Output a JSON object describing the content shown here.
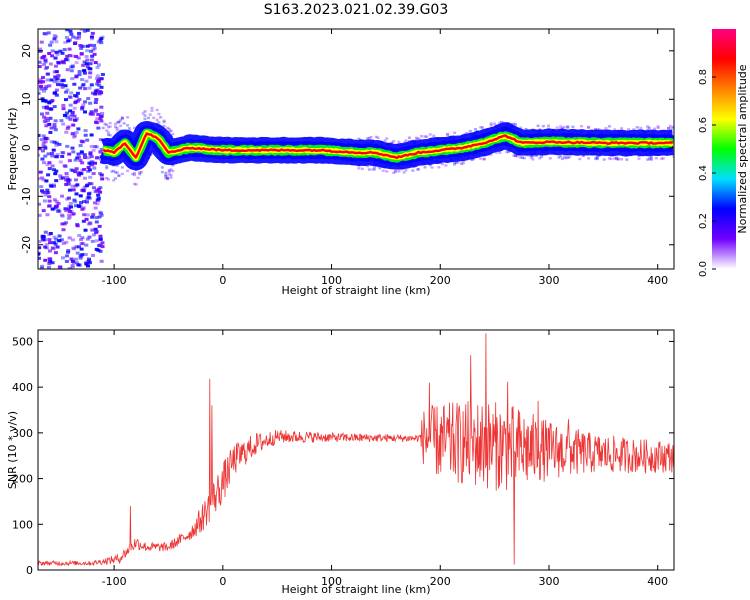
{
  "title": "S163.2023.021.02.39.G03",
  "chart_data": [
    {
      "type": "heatmap",
      "xlabel": "Height of straight line (km)",
      "ylabel": "Frequency (Hz)",
      "xlim": [
        -170,
        415
      ],
      "ylim": [
        -25,
        24.5
      ],
      "xticks": [
        -100,
        0,
        100,
        200,
        300,
        400
      ],
      "yticks": [
        -20,
        -10,
        0,
        10,
        20
      ],
      "ridge": [
        [
          -170,
          0
        ],
        [
          -120,
          0
        ],
        [
          -100,
          -1
        ],
        [
          -90,
          1
        ],
        [
          -80,
          -2
        ],
        [
          -70,
          3
        ],
        [
          -60,
          2
        ],
        [
          -50,
          -1
        ],
        [
          -40,
          -0.5
        ],
        [
          -30,
          0
        ],
        [
          0,
          -0.5
        ],
        [
          50,
          -0.5
        ],
        [
          90,
          -0.5
        ],
        [
          125,
          -1
        ],
        [
          140,
          -1
        ],
        [
          160,
          -2
        ],
        [
          180,
          -1
        ],
        [
          200,
          -0.5
        ],
        [
          220,
          0
        ],
        [
          240,
          1
        ],
        [
          260,
          2.5
        ],
        [
          275,
          1
        ],
        [
          300,
          1.2
        ],
        [
          350,
          1
        ],
        [
          415,
          1
        ]
      ],
      "colorbar": {
        "label": "Normalized spectral amplitude",
        "range": [
          0,
          1
        ],
        "ticks": [
          "0.0",
          "0.2",
          "0.4",
          "0.6",
          "0.8"
        ],
        "tick_values": [
          0,
          0.2,
          0.4,
          0.6,
          0.8
        ],
        "colors": [
          "#ffffff",
          "#7000ff",
          "#0000ff",
          "#00e0ff",
          "#00ff00",
          "#ffff00",
          "#ff8000",
          "#ff0000",
          "#ff0080"
        ]
      }
    },
    {
      "type": "line",
      "xlabel": "Height of straight line (km)",
      "ylabel": "SNR (10 * v/v)",
      "xlim": [
        -170,
        415
      ],
      "ylim": [
        0,
        525
      ],
      "xticks": [
        -100,
        0,
        100,
        200,
        300,
        400
      ],
      "yticks": [
        0,
        100,
        200,
        300,
        400,
        500
      ],
      "color": "#ee3333",
      "envelope": [
        [
          -170,
          15,
          5
        ],
        [
          -120,
          15,
          5
        ],
        [
          -95,
          25,
          10
        ],
        [
          -80,
          60,
          15
        ],
        [
          -70,
          50,
          10
        ],
        [
          -50,
          50,
          10
        ],
        [
          -30,
          80,
          15
        ],
        [
          -20,
          110,
          30
        ],
        [
          -10,
          150,
          40
        ],
        [
          0,
          190,
          45
        ],
        [
          10,
          240,
          35
        ],
        [
          30,
          275,
          25
        ],
        [
          50,
          292,
          15
        ],
        [
          100,
          290,
          10
        ],
        [
          180,
          288,
          8
        ],
        [
          185,
          290,
          65
        ],
        [
          200,
          280,
          85
        ],
        [
          240,
          275,
          100
        ],
        [
          270,
          265,
          95
        ],
        [
          300,
          262,
          65
        ],
        [
          340,
          255,
          45
        ],
        [
          380,
          250,
          38
        ],
        [
          415,
          248,
          35
        ]
      ],
      "spikes": [
        [
          -85,
          140
        ],
        [
          -12,
          418
        ],
        [
          -10,
          360
        ],
        [
          190,
          410
        ],
        [
          228,
          470
        ],
        [
          242,
          518
        ],
        [
          262,
          412
        ],
        [
          268,
          12
        ],
        [
          290,
          370
        ],
        [
          318,
          330
        ]
      ]
    }
  ]
}
